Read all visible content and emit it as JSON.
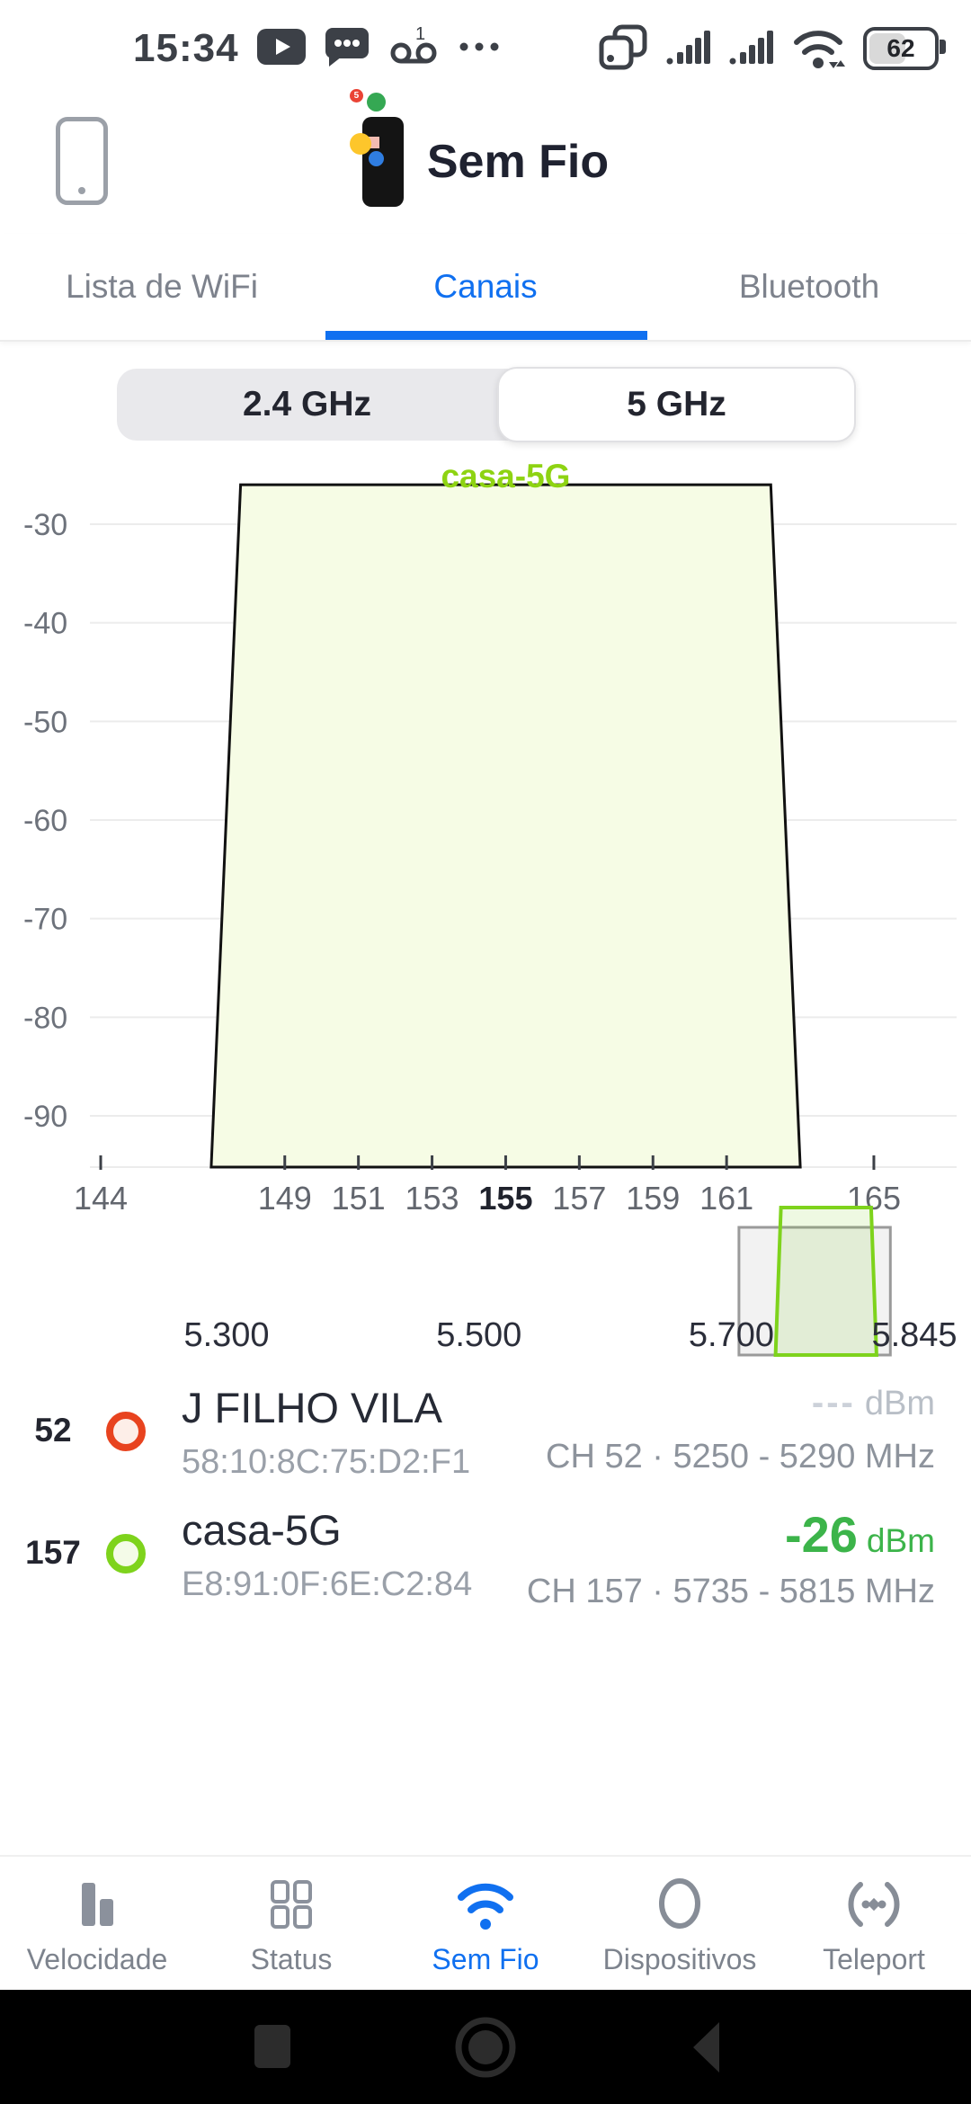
{
  "status_bar": {
    "time": "15:34",
    "battery_percent": "62",
    "left_icons": [
      "youtube-icon",
      "messages-icon",
      "voicemail-icon",
      "more-dots-icon"
    ],
    "right_icons": [
      "cast-icon",
      "cell-signal-icon",
      "cell-signal-icon",
      "wifi-status-icon",
      "battery-icon"
    ]
  },
  "header": {
    "title": "Sem Fio",
    "logo_badge": "5"
  },
  "tabs": [
    {
      "label": "Lista de WiFi",
      "active": false
    },
    {
      "label": "Canais",
      "active": true
    },
    {
      "label": "Bluetooth",
      "active": false
    }
  ],
  "band_switch": {
    "options": [
      "2.4 GHz",
      "5 GHz"
    ],
    "selected": "5 GHz"
  },
  "chart_data": {
    "type": "area",
    "title": "casa-5G",
    "title_color": "#8ed312",
    "ylabel": "dBm",
    "ylim": [
      -95.2,
      -23
    ],
    "xlim": [
      143.7,
      166.6
    ],
    "grid": true,
    "y_ticks": [
      -30,
      -40,
      -50,
      -60,
      -70,
      -80,
      -90
    ],
    "x_ticks": [
      {
        "value": 144,
        "label": "144",
        "bold": false
      },
      {
        "value": 149,
        "label": "149",
        "bold": false
      },
      {
        "value": 151,
        "label": "151",
        "bold": false
      },
      {
        "value": 153,
        "label": "153",
        "bold": false
      },
      {
        "value": 155,
        "label": "155",
        "bold": true
      },
      {
        "value": 157,
        "label": "157",
        "bold": false
      },
      {
        "value": 159,
        "label": "159",
        "bold": false
      },
      {
        "value": 161,
        "label": "161",
        "bold": false
      },
      {
        "value": 165,
        "label": "165",
        "bold": false
      }
    ],
    "series": [
      {
        "name": "casa-5G",
        "channel": 157,
        "center_channel": 155,
        "dbm": -26,
        "freq_range_mhz": [
          5735,
          5815
        ],
        "polygon_channel_dbm": [
          [
            147,
            -95.2
          ],
          [
            147.8,
            -26
          ],
          [
            162.2,
            -26
          ],
          [
            163,
            -95.2
          ]
        ],
        "fill": "#f6fce5",
        "stroke": "#111111"
      }
    ],
    "minimap": {
      "band_labels": [
        {
          "label": "5.300",
          "mhz": 5300
        },
        {
          "label": "5.500",
          "mhz": 5500
        },
        {
          "label": "5.700",
          "mhz": 5700
        },
        {
          "label": "5.845",
          "mhz": 5845
        }
      ],
      "viewport_mhz": [
        5706,
        5826
      ],
      "channel_box_mhz": [
        5735,
        5815
      ]
    }
  },
  "networks": [
    {
      "channel": "52",
      "color": "#e8431f",
      "name": "J FILHO VILA",
      "bssid": "58:10:8C:75:D2:F1",
      "signal": "---",
      "signal_unit": "dBm",
      "details": "CH 52 · 5250 - 5290 MHz"
    },
    {
      "channel": "157",
      "color": "#7ed31c",
      "name": "casa-5G",
      "bssid": "E8:91:0F:6E:C2:84",
      "signal": "-26",
      "signal_unit": "dBm",
      "details": "CH 157 · 5735 - 5815 MHz"
    }
  ],
  "bottom_nav": [
    {
      "label": "Velocidade",
      "icon": "speed-bars-icon",
      "active": false
    },
    {
      "label": "Status",
      "icon": "status-grid-icon",
      "active": false
    },
    {
      "label": "Sem Fio",
      "icon": "wifi-icon",
      "active": true
    },
    {
      "label": "Dispositivos",
      "icon": "devices-circle-icon",
      "active": false
    },
    {
      "label": "Teleport",
      "icon": "teleport-icon",
      "active": false
    }
  ],
  "colors": {
    "accent_blue": "#1070f0",
    "chart_green": "#8ed312",
    "ring_green": "#7ed31c",
    "signal_green": "#3cb44a",
    "alert_orange": "#e8431f",
    "text_dark": "#23252f",
    "text_gray": "#8d939c"
  }
}
